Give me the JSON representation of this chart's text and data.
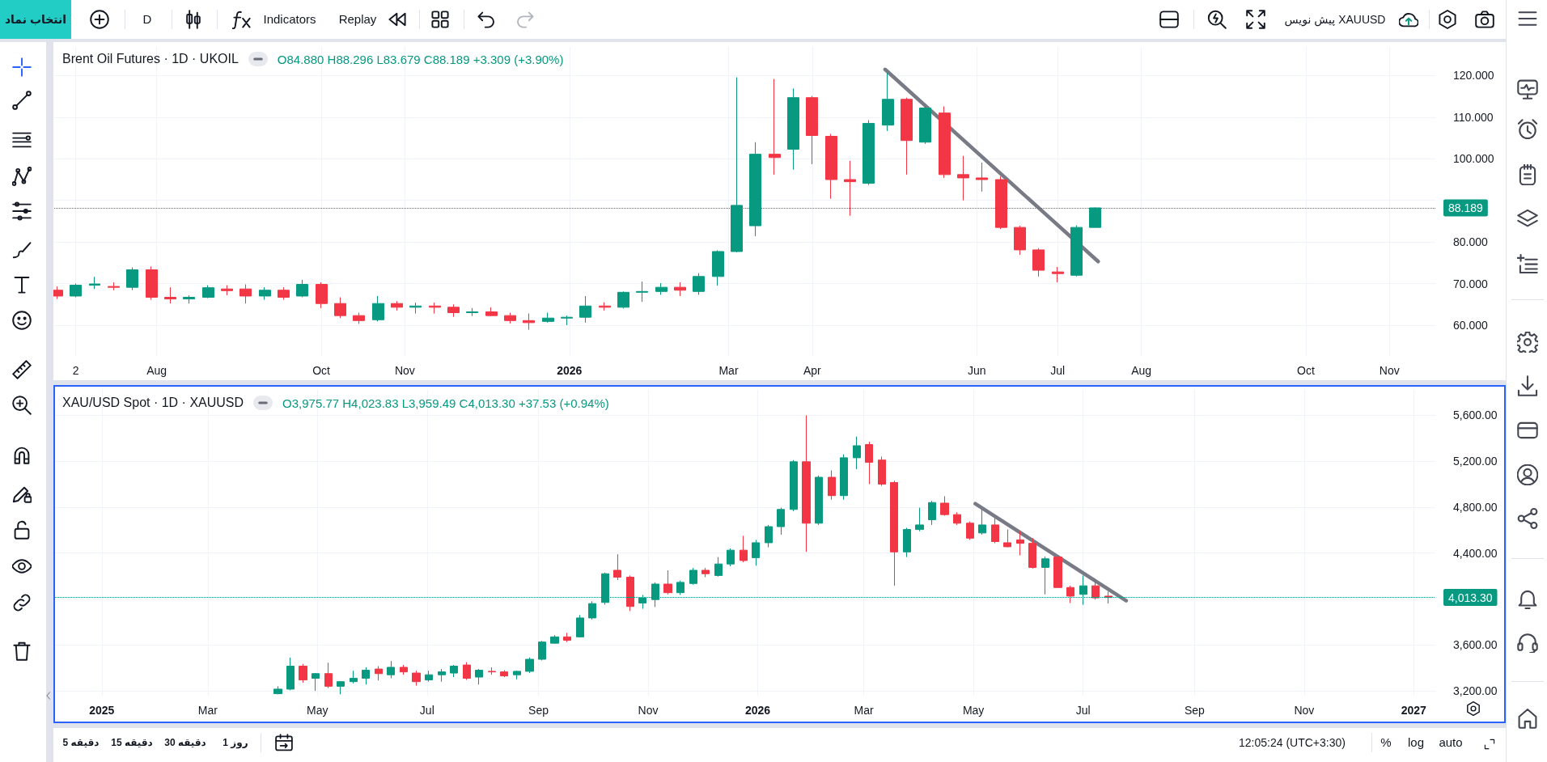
{
  "chart_data": [
    {
      "type": "candlestick",
      "title": "Brent Oil Futures · 1D · UKOIL",
      "subtitle": "O84.880 H88.296 L83.679 C88.189 +3.309 (+3.90%)",
      "x": [
        "2025-06-25",
        "2025-07-02",
        "2025-07-09",
        "2025-07-16",
        "2025-07-23",
        "2025-07-30",
        "2025-08-06",
        "2025-08-13",
        "2025-08-20",
        "2025-08-27",
        "2025-09-03",
        "2025-09-10",
        "2025-09-17",
        "2025-09-24",
        "2025-10-01",
        "2025-10-08",
        "2025-10-15",
        "2025-10-22",
        "2025-10-29",
        "2025-11-05",
        "2025-11-12",
        "2025-11-19",
        "2025-11-26",
        "2025-12-03",
        "2025-12-10",
        "2025-12-17",
        "2025-12-24",
        "2025-12-31",
        "2026-01-07",
        "2026-01-14",
        "2026-01-21",
        "2026-01-28",
        "2026-02-04",
        "2026-02-11",
        "2026-02-18",
        "2026-02-25",
        "2026-03-04",
        "2026-03-11",
        "2026-03-18",
        "2026-03-25",
        "2026-04-01",
        "2026-04-08",
        "2026-04-15",
        "2026-04-22",
        "2026-04-29",
        "2026-05-06",
        "2026-05-13",
        "2026-05-20",
        "2026-05-27",
        "2026-06-03",
        "2026-06-10",
        "2026-06-17",
        "2026-06-24",
        "2026-07-01",
        "2026-07-08",
        "2026-07-15"
      ],
      "ohlc": [
        [
          68.4,
          69.3,
          66.3,
          67.0
        ],
        [
          67.0,
          70.0,
          66.7,
          69.6
        ],
        [
          69.6,
          71.6,
          68.7,
          69.9
        ],
        [
          69.3,
          70.3,
          68.4,
          69.1
        ],
        [
          69.1,
          73.9,
          68.4,
          73.3
        ],
        [
          73.3,
          74.1,
          66.1,
          66.7
        ],
        [
          66.7,
          69.1,
          65.2,
          66.3
        ],
        [
          66.3,
          67.2,
          65.2,
          66.7
        ],
        [
          66.7,
          69.6,
          66.5,
          69.0
        ],
        [
          68.7,
          69.6,
          67.2,
          68.3
        ],
        [
          68.7,
          69.8,
          65.2,
          67.0
        ],
        [
          67.0,
          69.1,
          66.1,
          68.4
        ],
        [
          68.4,
          69.1,
          66.1,
          66.7
        ],
        [
          67.0,
          70.9,
          66.7,
          69.8
        ],
        [
          69.8,
          70.3,
          64.1,
          65.2
        ],
        [
          65.2,
          66.7,
          61.7,
          62.3
        ],
        [
          62.3,
          63.0,
          60.3,
          61.1
        ],
        [
          61.3,
          67.0,
          60.9,
          65.2
        ],
        [
          65.2,
          65.8,
          63.5,
          64.3
        ],
        [
          64.3,
          65.4,
          62.8,
          64.6
        ],
        [
          64.6,
          65.4,
          62.8,
          64.3
        ],
        [
          64.3,
          65.0,
          62.0,
          63.0
        ],
        [
          63.0,
          64.1,
          62.2,
          63.2
        ],
        [
          63.2,
          64.3,
          62.2,
          62.3
        ],
        [
          62.3,
          63.0,
          60.4,
          61.1
        ],
        [
          61.1,
          62.8,
          58.9,
          60.6
        ],
        [
          60.9,
          63.0,
          60.6,
          61.7
        ],
        [
          61.7,
          62.3,
          60.0,
          61.9
        ],
        [
          61.9,
          67.0,
          60.6,
          64.6
        ],
        [
          64.6,
          65.5,
          63.5,
          64.3
        ],
        [
          64.3,
          68.1,
          64.0,
          67.9
        ],
        [
          67.9,
          70.5,
          65.6,
          68.1
        ],
        [
          68.1,
          70.1,
          67.3,
          69.1
        ],
        [
          69.1,
          70.3,
          67.0,
          68.4
        ],
        [
          68.1,
          72.5,
          67.3,
          71.7
        ],
        [
          71.7,
          78.0,
          69.5,
          77.7
        ],
        [
          77.7,
          119.6,
          77.5,
          88.8
        ],
        [
          83.9,
          104.0,
          81.4,
          101.1
        ],
        [
          101.1,
          119.2,
          96.2,
          100.3
        ],
        [
          102.3,
          116.9,
          97.4,
          114.7
        ],
        [
          114.7,
          115.1,
          98.7,
          105.6
        ],
        [
          105.4,
          106.0,
          90.4,
          95.0
        ],
        [
          95.0,
          99.5,
          86.3,
          94.5
        ],
        [
          94.1,
          109.3,
          93.7,
          108.5
        ],
        [
          108.1,
          120.7,
          106.7,
          114.3
        ],
        [
          114.3,
          114.7,
          96.2,
          104.4
        ],
        [
          104.0,
          112.6,
          103.6,
          112.2
        ],
        [
          111.0,
          112.6,
          95.4,
          96.2
        ],
        [
          96.2,
          100.7,
          90.0,
          95.4
        ],
        [
          95.4,
          99.1,
          92.1,
          95.0
        ],
        [
          95.0,
          95.8,
          83.1,
          83.5
        ],
        [
          83.5,
          83.9,
          76.9,
          78.1
        ],
        [
          78.1,
          78.5,
          71.7,
          73.2
        ],
        [
          72.8,
          74.0,
          70.3,
          72.4
        ],
        [
          72.0,
          84.0,
          71.7,
          83.5
        ],
        [
          83.5,
          88.3,
          83.5,
          88.2
        ]
      ],
      "colors": [
        "#f23645",
        "#089981",
        "#089981",
        "#f23645",
        "#089981",
        "#f23645",
        "#f23645",
        "#089981",
        "#089981",
        "#f23645",
        "#f23645",
        "#089981",
        "#f23645",
        "#089981",
        "#f23645",
        "#f23645",
        "#f23645",
        "#089981",
        "#f23645",
        "#089981",
        "#f23645",
        "#f23645",
        "#089981",
        "#f23645",
        "#f23645",
        "#f23645",
        "#089981",
        "#089981",
        "#089981",
        "#f23645",
        "#089981",
        "#089981",
        "#089981",
        "#f23645",
        "#089981",
        "#089981",
        "#089981",
        "#089981",
        "#f23645",
        "#089981",
        "#f23645",
        "#f23645",
        "#f23645",
        "#089981",
        "#089981",
        "#f23645",
        "#089981",
        "#f23645",
        "#f23645",
        "#f23645",
        "#f23645",
        "#f23645",
        "#f23645",
        "#f23645",
        "#089981",
        "#089981"
      ],
      "xlim": [
        "2025-06-24",
        "2026-11-18"
      ],
      "xticks": [
        {
          "value": "2025-07-02",
          "label": "2"
        },
        {
          "value": "2025-08-01",
          "label": "Aug"
        },
        {
          "value": "2025-10-01",
          "label": "Oct"
        },
        {
          "value": "2025-11-01",
          "label": "Nov"
        },
        {
          "value": "2026-01-01",
          "label": "2026"
        },
        {
          "value": "2026-03-01",
          "label": "Mar"
        },
        {
          "value": "2026-04-01",
          "label": "Apr"
        },
        {
          "value": "2026-06-01",
          "label": "Jun"
        },
        {
          "value": "2026-07-01",
          "label": "Jul"
        },
        {
          "value": "2026-08-01",
          "label": "Aug"
        },
        {
          "value": "2026-10-01",
          "label": "Oct"
        },
        {
          "value": "2026-11-01",
          "label": "Nov"
        }
      ],
      "ylim": [
        52.6,
        126.9
      ],
      "yticks": [
        {
          "value": 60,
          "label": "60.000"
        },
        {
          "value": 70,
          "label": "70.000"
        },
        {
          "value": 80,
          "label": "80.000"
        },
        {
          "value": 90,
          "label": null
        },
        {
          "value": 100,
          "label": "100.000"
        },
        {
          "value": 110,
          "label": "110.000"
        },
        {
          "value": 120,
          "label": "120.000"
        }
      ],
      "grid": true,
      "ref_lines": [
        {
          "axis": "y",
          "value": 88.189,
          "label": "88.189",
          "color": "#089981",
          "line_style": "dotted"
        }
      ],
      "series": [
        {
          "type": "line",
          "x": [
            "2026-04-28",
            "2026-07-16"
          ],
          "values": [
            121.5,
            75.3
          ],
          "color": "#787b86"
        }
      ]
    },
    {
      "type": "candlestick",
      "title": "XAU/USD Spot · 1D · XAUUSD",
      "subtitle": "O3,975.77 H4,023.83 L3,959.49 C4,013.30 +37.53 (+0.94%)",
      "x": [
        "2025-04-09",
        "2025-04-16",
        "2025-04-23",
        "2025-04-30",
        "2025-05-07",
        "2025-05-14",
        "2025-05-21",
        "2025-05-28",
        "2025-06-04",
        "2025-06-11",
        "2025-06-18",
        "2025-06-25",
        "2025-07-02",
        "2025-07-09",
        "2025-07-16",
        "2025-07-23",
        "2025-07-30",
        "2025-08-06",
        "2025-08-13",
        "2025-08-20",
        "2025-08-27",
        "2025-09-03",
        "2025-09-10",
        "2025-09-17",
        "2025-09-24",
        "2025-10-01",
        "2025-10-08",
        "2025-10-15",
        "2025-10-22",
        "2025-10-29",
        "2025-11-05",
        "2025-11-12",
        "2025-11-19",
        "2025-11-26",
        "2025-12-03",
        "2025-12-10",
        "2025-12-17",
        "2025-12-24",
        "2025-12-31",
        "2026-01-07",
        "2026-01-14",
        "2026-01-21",
        "2026-01-28",
        "2026-02-04",
        "2026-02-11",
        "2026-02-18",
        "2026-02-25",
        "2026-03-04",
        "2026-03-11",
        "2026-03-18",
        "2026-03-25",
        "2026-04-01",
        "2026-04-08",
        "2026-04-15",
        "2026-04-22",
        "2026-04-29",
        "2026-05-06",
        "2026-05-13",
        "2026-05-20",
        "2026-05-27",
        "2026-06-03",
        "2026-06-10",
        "2026-06-17",
        "2026-06-24",
        "2026-07-01",
        "2026-07-08",
        "2026-07-15"
      ],
      "ohlc": [
        [
          3175,
          3240,
          3170,
          3215
        ],
        [
          3215,
          3490,
          3205,
          3415
        ],
        [
          3415,
          3435,
          3270,
          3295
        ],
        [
          3310,
          3355,
          3200,
          3350
        ],
        [
          3350,
          3445,
          3225,
          3240
        ],
        [
          3240,
          3285,
          3170,
          3280
        ],
        [
          3280,
          3375,
          3265,
          3310
        ],
        [
          3310,
          3405,
          3255,
          3380
        ],
        [
          3390,
          3415,
          3290,
          3350
        ],
        [
          3340,
          3460,
          3310,
          3405
        ],
        [
          3405,
          3425,
          3340,
          3365
        ],
        [
          3355,
          3375,
          3245,
          3280
        ],
        [
          3295,
          3375,
          3280,
          3340
        ],
        [
          3340,
          3390,
          3280,
          3365
        ],
        [
          3355,
          3425,
          3320,
          3415
        ],
        [
          3425,
          3450,
          3295,
          3310
        ],
        [
          3320,
          3390,
          3255,
          3380
        ],
        [
          3370,
          3405,
          3340,
          3365
        ],
        [
          3365,
          3380,
          3320,
          3330
        ],
        [
          3340,
          3375,
          3300,
          3370
        ],
        [
          3370,
          3490,
          3355,
          3475
        ],
        [
          3475,
          3635,
          3465,
          3625
        ],
        [
          3615,
          3685,
          3610,
          3670
        ],
        [
          3670,
          3705,
          3625,
          3640
        ],
        [
          3670,
          3860,
          3665,
          3835
        ],
        [
          3835,
          3980,
          3820,
          3960
        ],
        [
          3970,
          4230,
          3950,
          4220
        ],
        [
          4250,
          4390,
          4165,
          4190
        ],
        [
          4190,
          4205,
          3895,
          3935
        ],
        [
          3965,
          4035,
          3915,
          4010
        ],
        [
          3995,
          4145,
          3930,
          4130
        ],
        [
          4130,
          4250,
          4040,
          4055
        ],
        [
          4055,
          4160,
          4035,
          4145
        ],
        [
          4135,
          4270,
          4125,
          4250
        ],
        [
          4250,
          4270,
          4190,
          4220
        ],
        [
          4205,
          4365,
          4195,
          4305
        ],
        [
          4305,
          4440,
          4285,
          4425
        ],
        [
          4425,
          4550,
          4320,
          4335
        ],
        [
          4360,
          4515,
          4290,
          4490
        ],
        [
          4490,
          4645,
          4450,
          4630
        ],
        [
          4630,
          4795,
          4560,
          4780
        ],
        [
          4780,
          5210,
          4765,
          5195
        ],
        [
          5195,
          5600,
          4410,
          4660
        ],
        [
          4660,
          5075,
          4645,
          5060
        ],
        [
          5060,
          5120,
          4865,
          4900
        ],
        [
          4900,
          5260,
          4865,
          5230
        ],
        [
          5230,
          5415,
          5130,
          5335
        ],
        [
          5345,
          5370,
          5000,
          5190
        ],
        [
          5210,
          5240,
          4985,
          5000
        ],
        [
          5015,
          5030,
          4115,
          4410
        ],
        [
          4410,
          4620,
          4365,
          4605
        ],
        [
          4605,
          4795,
          4590,
          4645
        ],
        [
          4690,
          4855,
          4645,
          4840
        ],
        [
          4835,
          4895,
          4725,
          4735
        ],
        [
          4735,
          4755,
          4645,
          4660
        ],
        [
          4660,
          4675,
          4515,
          4530
        ],
        [
          4575,
          4780,
          4560,
          4645
        ],
        [
          4645,
          4705,
          4485,
          4500
        ],
        [
          4490,
          4605,
          4450,
          4455
        ],
        [
          4515,
          4590,
          4380,
          4485
        ],
        [
          4485,
          4530,
          4265,
          4275
        ],
        [
          4275,
          4370,
          4040,
          4350
        ],
        [
          4365,
          4380,
          4095,
          4100
        ],
        [
          4100,
          4115,
          3965,
          4025
        ],
        [
          4040,
          4205,
          3950,
          4115
        ],
        [
          4115,
          4175,
          3995,
          4010
        ],
        [
          4025,
          4065,
          3960,
          4013
        ]
      ],
      "colors": [
        "#089981",
        "#089981",
        "#f23645",
        "#089981",
        "#f23645",
        "#089981",
        "#089981",
        "#089981",
        "#f23645",
        "#089981",
        "#f23645",
        "#f23645",
        "#089981",
        "#089981",
        "#089981",
        "#f23645",
        "#089981",
        "#f23645",
        "#f23645",
        "#089981",
        "#089981",
        "#089981",
        "#089981",
        "#f23645",
        "#089981",
        "#089981",
        "#089981",
        "#f23645",
        "#f23645",
        "#089981",
        "#089981",
        "#f23645",
        "#089981",
        "#089981",
        "#f23645",
        "#089981",
        "#089981",
        "#f23645",
        "#089981",
        "#089981",
        "#089981",
        "#089981",
        "#f23645",
        "#089981",
        "#f23645",
        "#089981",
        "#089981",
        "#f23645",
        "#f23645",
        "#f23645",
        "#089981",
        "#089981",
        "#089981",
        "#f23645",
        "#f23645",
        "#f23645",
        "#089981",
        "#f23645",
        "#f23645",
        "#f23645",
        "#f23645",
        "#089981",
        "#f23645",
        "#f23645",
        "#089981",
        "#f23645",
        "#f23645"
      ],
      "xlim": [
        "2024-12-06",
        "2027-01-13"
      ],
      "xticks": [
        {
          "value": "2025-01-01",
          "label": "2025"
        },
        {
          "value": "2025-03-01",
          "label": "Mar"
        },
        {
          "value": "2025-05-01",
          "label": "May"
        },
        {
          "value": "2025-07-01",
          "label": "Jul"
        },
        {
          "value": "2025-09-01",
          "label": "Sep"
        },
        {
          "value": "2025-11-01",
          "label": "Nov"
        },
        {
          "value": "2026-01-01",
          "label": "2026"
        },
        {
          "value": "2026-03-01",
          "label": "Mar"
        },
        {
          "value": "2026-05-01",
          "label": "May"
        },
        {
          "value": "2026-07-01",
          "label": "Jul"
        },
        {
          "value": "2026-09-01",
          "label": "Sep"
        },
        {
          "value": "2026-11-01",
          "label": "Nov"
        },
        {
          "value": "2027-01-01",
          "label": "2027"
        }
      ],
      "ylim": [
        3158,
        5821
      ],
      "yticks": [
        {
          "value": 3200,
          "label": "3,200.00"
        },
        {
          "value": 3600,
          "label": "3,600.00"
        },
        {
          "value": 4000,
          "label": null
        },
        {
          "value": 4400,
          "label": "4,400.00"
        },
        {
          "value": 4800,
          "label": "4,800.00"
        },
        {
          "value": 5200,
          "label": "5,200.00"
        },
        {
          "value": 5600,
          "label": "5,600.00"
        }
      ],
      "grid": true,
      "ref_lines": [
        {
          "axis": "y",
          "value": 4013.3,
          "label": "4,013.30",
          "color": "#089981",
          "line_style": "dotted"
        }
      ],
      "series": [
        {
          "type": "line",
          "x": [
            "2026-05-02",
            "2026-07-25"
          ],
          "values": [
            4830,
            3985
          ],
          "color": "#787b86"
        }
      ]
    },
    {
      "type": "other",
      "annotations": [
        "انتخاب نماد",
        "D",
        "Indicators",
        "Replay",
        "XAUUSD پیش نویس",
        "5 دقیقه",
        "15 دقیقه",
        "30 دقیقه",
        "1 روز",
        "12:05:24 (UTC+3:30)",
        "%",
        "log",
        "auto"
      ]
    }
  ]
}
